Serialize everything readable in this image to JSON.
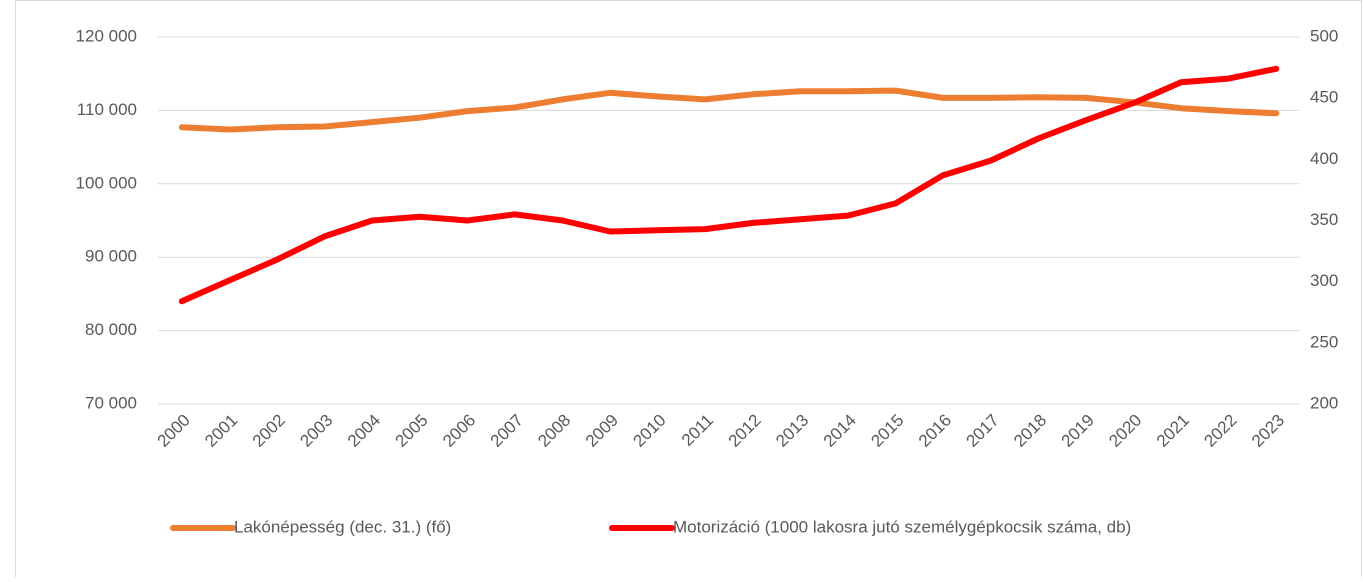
{
  "chart_data": {
    "type": "line",
    "categories": [
      "2000",
      "2001",
      "2002",
      "2003",
      "2004",
      "2005",
      "2006",
      "2007",
      "2008",
      "2009",
      "2010",
      "2011",
      "2012",
      "2013",
      "2014",
      "2015",
      "2016",
      "2017",
      "2018",
      "2019",
      "2020",
      "2021",
      "2022",
      "2023"
    ],
    "series": [
      {
        "name": "Lakónépesség (dec. 31.) (fő)",
        "color": "#ed7d31",
        "axis": "y",
        "values": [
          107700,
          107400,
          107700,
          107800,
          108400,
          109000,
          109900,
          110400,
          111500,
          112400,
          111900,
          111500,
          112200,
          112600,
          112600,
          112700,
          111700,
          111700,
          111800,
          111700,
          111100,
          110300,
          109900,
          109600
        ]
      },
      {
        "name": "Motorizáció (1000 lakosra jutó személygépkocsik száma, db)",
        "color": "#ff0000",
        "axis": "y2",
        "values": [
          284,
          301,
          318,
          337,
          350,
          353,
          350,
          355,
          350,
          341,
          342,
          343,
          348,
          351,
          354,
          364,
          387,
          399,
          417,
          432,
          446,
          463,
          466,
          474
        ]
      }
    ],
    "ylim": [
      70000,
      120000
    ],
    "yticks": [
      {
        "value": 70000,
        "label": "70 000"
      },
      {
        "value": 80000,
        "label": "80 000"
      },
      {
        "value": 90000,
        "label": "90 000"
      },
      {
        "value": 100000,
        "label": "100 000"
      },
      {
        "value": 110000,
        "label": "110 000"
      },
      {
        "value": 120000,
        "label": "120 000"
      }
    ],
    "y2lim": [
      200,
      500
    ],
    "y2ticks": [
      200,
      250,
      300,
      350,
      400,
      450,
      500
    ],
    "grid": true
  }
}
